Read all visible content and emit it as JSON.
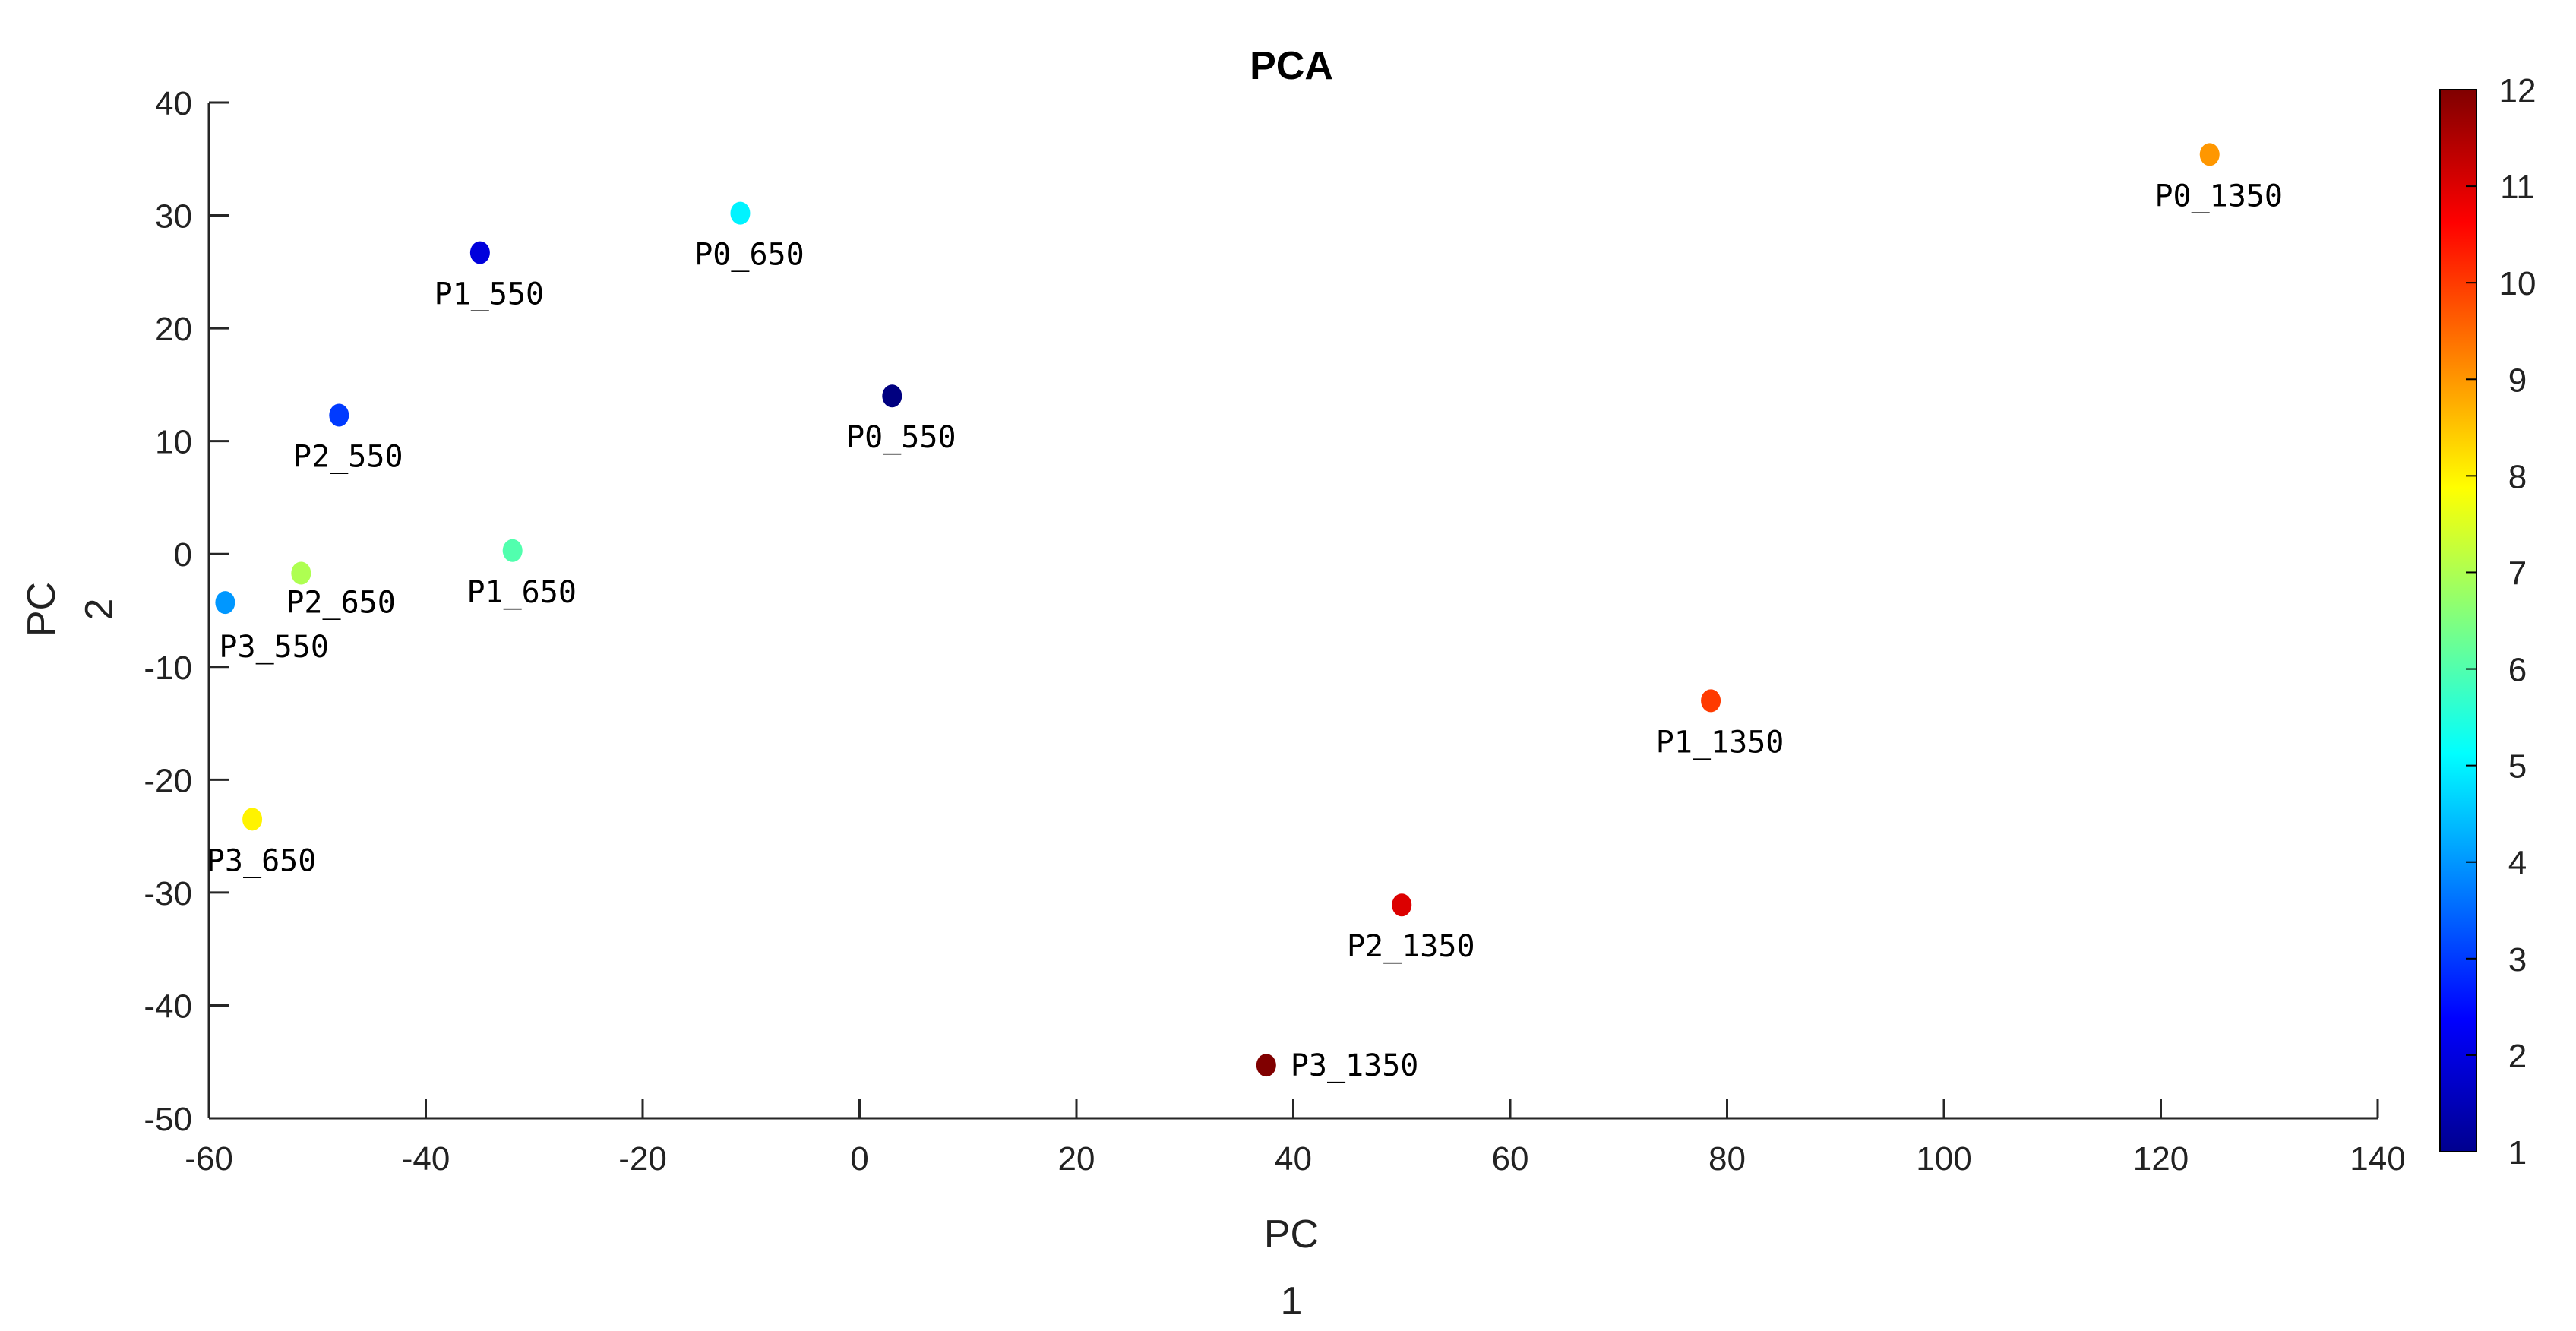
{
  "chart_data": {
    "type": "scatter",
    "title": "PCA",
    "xlabel_line1": "PC",
    "xlabel_line2": "1",
    "ylabel_line1": "PC",
    "ylabel_line2": "2",
    "xlim": [
      -60,
      140
    ],
    "ylim": [
      -50,
      40
    ],
    "x_ticks": [
      -60,
      -40,
      -20,
      0,
      20,
      40,
      60,
      80,
      100,
      120,
      140
    ],
    "y_ticks": [
      -50,
      -40,
      -30,
      -20,
      -10,
      0,
      10,
      20,
      30,
      40
    ],
    "colorbar": {
      "colormap": "jet",
      "range": [
        1,
        12
      ],
      "ticks": [
        1,
        2,
        3,
        4,
        5,
        6,
        7,
        8,
        9,
        10,
        11,
        12
      ]
    },
    "points": [
      {
        "label": "P0_550",
        "x": 3,
        "y": 14,
        "color_value": 1
      },
      {
        "label": "P1_550",
        "x": -35,
        "y": 26.7,
        "color_value": 2
      },
      {
        "label": "P2_550",
        "x": -48,
        "y": 12.3,
        "color_value": 3
      },
      {
        "label": "P3_550",
        "x": -58.5,
        "y": -4.3,
        "color_value": 4
      },
      {
        "label": "P0_650",
        "x": -11,
        "y": 30.2,
        "color_value": 5
      },
      {
        "label": "P1_650",
        "x": -32,
        "y": 0.3,
        "color_value": 6
      },
      {
        "label": "P2_650",
        "x": -51.5,
        "y": -1.7,
        "color_value": 7
      },
      {
        "label": "P3_650",
        "x": -56,
        "y": -23.5,
        "color_value": 8
      },
      {
        "label": "P0_1350",
        "x": 124.5,
        "y": 35.4,
        "color_value": 9
      },
      {
        "label": "P1_1350",
        "x": 78.5,
        "y": -13,
        "color_value": 10
      },
      {
        "label": "P2_1350",
        "x": 50,
        "y": -31.1,
        "color_value": 11
      },
      {
        "label": "P3_1350",
        "x": 37.5,
        "y": -45.3,
        "color_value": 12
      }
    ]
  }
}
